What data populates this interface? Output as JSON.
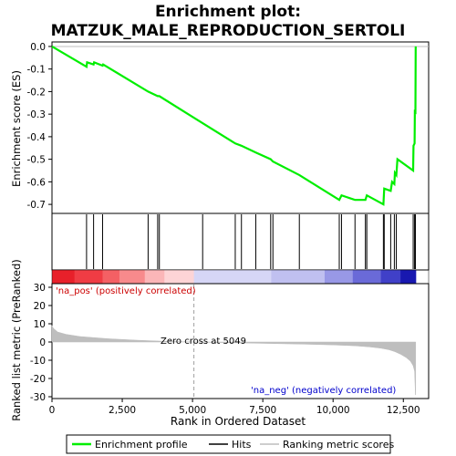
{
  "chart_data": {
    "type": "line",
    "title": "Enrichment plot:\nMATZUK_MALE_REPRODUCTION_SERTOLI",
    "top_panel": {
      "ylabel": "Enrichment score (ES)",
      "ylim": [
        -0.74,
        0.02
      ],
      "yticks": [
        0.0,
        -0.1,
        -0.2,
        -0.3,
        -0.4,
        -0.5,
        -0.6,
        -0.7
      ],
      "ytick_labels": [
        "0.0",
        "-0.1",
        "-0.2",
        "-0.3",
        "-0.4",
        "-0.5",
        "-0.6",
        "-0.7"
      ],
      "series": [
        {
          "name": "Enrichment profile",
          "color": "#00ee00",
          "x": [
            0,
            1230,
            1250,
            1480,
            1500,
            1800,
            1820,
            3420,
            3760,
            3820,
            5360,
            6520,
            6740,
            7250,
            7780,
            7860,
            8800,
            10220,
            10300,
            10780,
            11150,
            11200,
            11790,
            11820,
            12050,
            12100,
            12180,
            12200,
            12250,
            12290,
            12850,
            12860,
            12900,
            12910,
            12930,
            12940
          ],
          "y": [
            0.0,
            -0.09,
            -0.07,
            -0.08,
            -0.07,
            -0.085,
            -0.08,
            -0.2,
            -0.22,
            -0.22,
            -0.34,
            -0.43,
            -0.44,
            -0.47,
            -0.5,
            -0.51,
            -0.57,
            -0.68,
            -0.66,
            -0.68,
            -0.68,
            -0.66,
            -0.7,
            -0.63,
            -0.64,
            -0.6,
            -0.61,
            -0.56,
            -0.57,
            -0.5,
            -0.55,
            -0.44,
            -0.43,
            -0.28,
            -0.3,
            0.0
          ]
        }
      ]
    },
    "hits": {
      "name": "Hits",
      "positions": [
        1230,
        1480,
        1800,
        3420,
        3760,
        3820,
        5360,
        6520,
        6740,
        7250,
        7780,
        7860,
        8800,
        10220,
        10300,
        10780,
        11150,
        11200,
        11790,
        11820,
        12050,
        12180,
        12250,
        12850,
        12900,
        12930
      ]
    },
    "colorbar": {
      "segments": [
        {
          "from": 0,
          "to": 800,
          "color": "#e8202a"
        },
        {
          "from": 800,
          "to": 1800,
          "color": "#f03c44"
        },
        {
          "from": 1800,
          "to": 2400,
          "color": "#f46064"
        },
        {
          "from": 2400,
          "to": 3300,
          "color": "#f88a8c"
        },
        {
          "from": 3300,
          "to": 4000,
          "color": "#fbb6b8"
        },
        {
          "from": 4000,
          "to": 5049,
          "color": "#fdd4d6"
        },
        {
          "from": 5049,
          "to": 7800,
          "color": "#d6d6f6"
        },
        {
          "from": 7800,
          "to": 9700,
          "color": "#c0c0f0"
        },
        {
          "from": 9700,
          "to": 10700,
          "color": "#9898e6"
        },
        {
          "from": 10700,
          "to": 11700,
          "color": "#6a6ad8"
        },
        {
          "from": 11700,
          "to": 12400,
          "color": "#4040c8"
        },
        {
          "from": 12400,
          "to": 12940,
          "color": "#1818b0"
        }
      ]
    },
    "bottom_panel": {
      "ylabel": "Ranked list metric (PreRanked)",
      "xlabel": "Rank in Ordered Dataset",
      "ylim": [
        -31,
        32
      ],
      "yticks": [
        30,
        20,
        10,
        0,
        -10,
        -20,
        -30
      ],
      "ytick_labels": [
        "30",
        "20",
        "10",
        "0",
        "-10",
        "-20",
        "-30"
      ],
      "xticks": [
        0,
        2500,
        5000,
        7500,
        10000,
        12500
      ],
      "xtick_labels": [
        "0",
        "2,500",
        "5,000",
        "7,500",
        "10,000",
        "12,500"
      ],
      "xlim": [
        0,
        13400
      ],
      "series": [
        {
          "name": "Ranking metric scores",
          "color": "#bebebe",
          "x": [
            0,
            50,
            200,
            500,
            1000,
            2000,
            3000,
            4000,
            5049,
            6000,
            7000,
            8000,
            9000,
            10000,
            10800,
            11300,
            11700,
            12000,
            12200,
            12400,
            12600,
            12750,
            12850,
            12900,
            12930,
            12940
          ],
          "y": [
            9,
            7.5,
            5.5,
            4.2,
            3.0,
            1.8,
            1.0,
            0.4,
            0.0,
            -0.3,
            -0.6,
            -0.9,
            -1.2,
            -1.6,
            -2.1,
            -2.7,
            -3.4,
            -4.3,
            -5.3,
            -6.7,
            -8.5,
            -10.5,
            -13,
            -16,
            -29,
            -29
          ]
        }
      ],
      "zero_cross_label": "Zero cross at 5049",
      "zero_cross": 5049,
      "pos_label": "'na_pos' (positively correlated)",
      "neg_label": "'na_neg' (negatively correlated)"
    },
    "legend": {
      "placement": "bottom",
      "items": [
        {
          "label": "Enrichment profile",
          "color": "#00ee00"
        },
        {
          "label": "Hits",
          "color": "#000000"
        },
        {
          "label": "Ranking metric scores",
          "color": "#bebebe"
        }
      ]
    }
  }
}
